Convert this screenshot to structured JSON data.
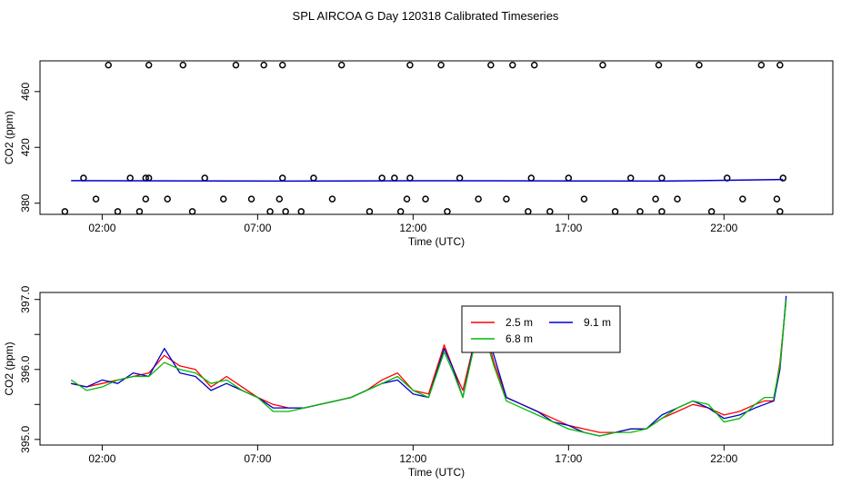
{
  "title": "SPL AIRCOA G  Day 120318  Calibrated Timeseries",
  "chart_data": [
    {
      "type": "scatter",
      "xlabel": "Time (UTC)",
      "ylabel": "CO2 (ppm)",
      "xlim": [
        0.0,
        25.5
      ],
      "ylim": [
        372,
        482
      ],
      "xticks": [
        2,
        7,
        12,
        17,
        22
      ],
      "xtick_labels": [
        "02:00",
        "07:00",
        "12:00",
        "17:00",
        "22:00"
      ],
      "yticks": [
        380,
        420,
        460
      ],
      "yticks_labels": [
        "380",
        "420",
        "460"
      ],
      "series": [
        {
          "color": "#000000",
          "marker": "open-circle",
          "x": [
            0.8,
            1.4,
            1.8,
            2.2,
            2.5,
            2.9,
            3.2,
            3.4,
            3.4,
            3.5,
            3.5,
            4.1,
            4.6,
            4.9,
            5.3,
            5.9,
            6.3,
            6.8,
            7.2,
            7.4,
            7.7,
            7.8,
            7.8,
            7.9,
            8.4,
            8.8,
            9.4,
            9.7,
            10.6,
            11.0,
            11.4,
            11.6,
            11.8,
            11.9,
            11.9,
            12.4,
            12.9,
            13.1,
            13.5,
            14.1,
            14.5,
            15.0,
            15.2,
            15.7,
            15.8,
            15.9,
            16.4,
            17.0,
            17.5,
            18.1,
            18.5,
            19.0,
            19.3,
            19.8,
            19.9,
            20.0,
            20.0,
            20.5,
            21.2,
            21.6,
            22.1,
            22.6,
            23.2,
            23.7,
            23.8,
            23.8,
            23.9
          ],
          "y": [
            374,
            398,
            383,
            479,
            374,
            398,
            374,
            383,
            398,
            398,
            479,
            383,
            479,
            374,
            398,
            383,
            479,
            383,
            479,
            374,
            383,
            398,
            479,
            374,
            374,
            398,
            383,
            479,
            374,
            398,
            398,
            374,
            383,
            398,
            479,
            383,
            479,
            374,
            398,
            383,
            479,
            383,
            479,
            374,
            398,
            479,
            374,
            398,
            383,
            479,
            374,
            398,
            374,
            383,
            479,
            398,
            374,
            383,
            479,
            374,
            398,
            383,
            479,
            383,
            479,
            374,
            398
          ]
        },
        {
          "color": "#0000cc",
          "marker": "line",
          "x": [
            1.0,
            4.0,
            8.0,
            12.0,
            16.0,
            20.0,
            23.9
          ],
          "y": [
            396.2,
            396.0,
            395.8,
            396.1,
            396.0,
            395.8,
            397.0
          ]
        }
      ]
    },
    {
      "type": "line",
      "xlabel": "Time (UTC)",
      "ylabel": "CO2 (ppm)",
      "xlim": [
        0.0,
        25.5
      ],
      "ylim": [
        394.92,
        397.1
      ],
      "xticks": [
        2,
        7,
        12,
        17,
        22
      ],
      "xtick_labels": [
        "02:00",
        "07:00",
        "12:00",
        "17:00",
        "22:00"
      ],
      "yticks": [
        395.0,
        395.5,
        396.0,
        396.5,
        397.0
      ],
      "ytick_labels": [
        "395.0",
        "",
        "396.0",
        "",
        "397.0"
      ],
      "legend": {
        "position": "top-center",
        "entries": [
          {
            "label": "2.5 m",
            "color": "#ff0000"
          },
          {
            "label": "9.1 m",
            "color": "#0000cc"
          },
          {
            "label": "6.8 m",
            "color": "#00bb00"
          }
        ]
      },
      "x": [
        1.0,
        1.5,
        2.0,
        2.5,
        3.0,
        3.5,
        4.0,
        4.5,
        5.0,
        5.5,
        6.0,
        6.5,
        7.0,
        7.5,
        8.0,
        8.5,
        9.0,
        9.5,
        10.0,
        10.5,
        11.0,
        11.5,
        12.0,
        12.5,
        13.0,
        13.3,
        13.6,
        14.0,
        14.3,
        14.6,
        15.0,
        15.5,
        16.0,
        16.5,
        17.0,
        17.5,
        18.0,
        18.5,
        19.0,
        19.5,
        20.0,
        20.5,
        21.0,
        21.5,
        22.0,
        22.5,
        23.0,
        23.3,
        23.6,
        23.8,
        24.0
      ],
      "series": [
        {
          "name": "2.5 m",
          "color": "#ff0000",
          "values": [
            395.8,
            395.75,
            395.8,
            395.85,
            395.9,
            395.95,
            396.2,
            396.05,
            396.0,
            395.75,
            395.9,
            395.75,
            395.6,
            395.5,
            395.45,
            395.45,
            395.5,
            395.55,
            395.6,
            395.7,
            395.85,
            395.95,
            395.7,
            395.65,
            396.35,
            396.0,
            395.7,
            396.45,
            396.6,
            396.1,
            395.6,
            395.5,
            395.4,
            395.3,
            395.2,
            395.15,
            395.1,
            395.1,
            395.15,
            395.15,
            395.3,
            395.4,
            395.5,
            395.45,
            395.35,
            395.4,
            395.5,
            395.55,
            395.55,
            396.1,
            397.0
          ]
        },
        {
          "name": "9.1 m",
          "color": "#0000cc",
          "values": [
            395.8,
            395.75,
            395.85,
            395.8,
            395.95,
            395.9,
            396.3,
            395.95,
            395.9,
            395.7,
            395.8,
            395.7,
            395.6,
            395.45,
            395.45,
            395.45,
            395.5,
            395.55,
            395.6,
            395.7,
            395.8,
            395.85,
            395.65,
            395.6,
            396.3,
            396.0,
            395.6,
            396.45,
            396.6,
            396.2,
            395.6,
            395.5,
            395.4,
            395.25,
            395.2,
            395.1,
            395.05,
            395.1,
            395.15,
            395.15,
            395.35,
            395.45,
            395.55,
            395.45,
            395.3,
            395.35,
            395.45,
            395.5,
            395.55,
            396.0,
            397.05
          ]
        },
        {
          "name": "6.8 m",
          "color": "#00bb00",
          "values": [
            395.85,
            395.7,
            395.75,
            395.85,
            395.9,
            395.9,
            396.1,
            396.0,
            395.95,
            395.8,
            395.85,
            395.7,
            395.6,
            395.4,
            395.4,
            395.45,
            395.5,
            395.55,
            395.6,
            395.7,
            395.8,
            395.9,
            395.7,
            395.6,
            396.25,
            395.95,
            395.6,
            396.4,
            396.5,
            396.05,
            395.55,
            395.45,
            395.35,
            395.25,
            395.15,
            395.1,
            395.05,
            395.1,
            395.1,
            395.15,
            395.3,
            395.45,
            395.55,
            395.5,
            395.25,
            395.3,
            395.5,
            395.6,
            395.6,
            396.05,
            397.0
          ]
        }
      ]
    }
  ]
}
